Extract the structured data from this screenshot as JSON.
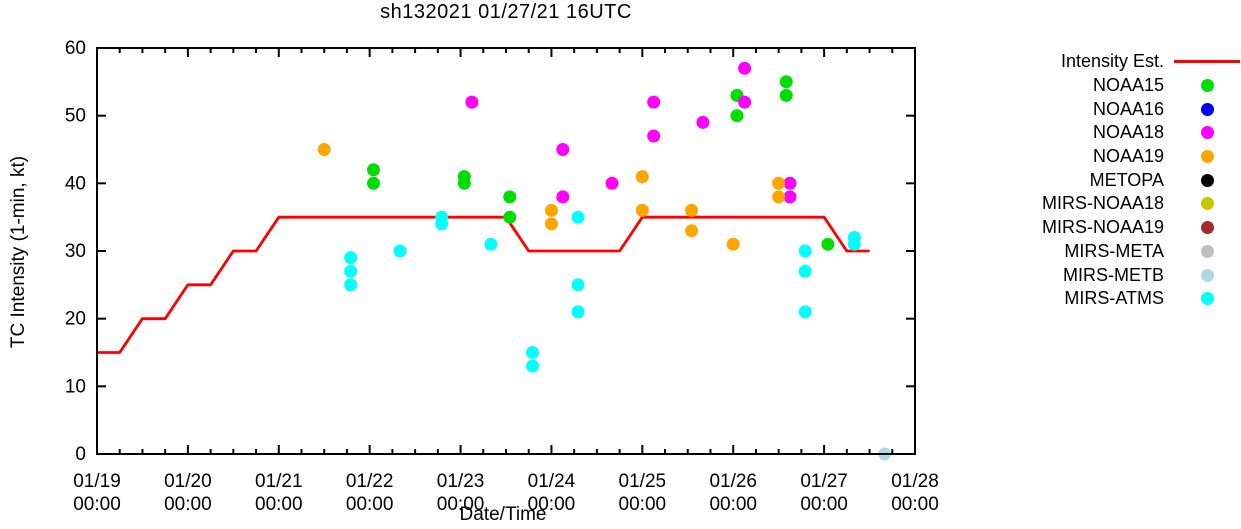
{
  "title": "sh132021 01/27/21 16UTC",
  "axes": {
    "ylabel": "TC Intensity (1-min, kt)",
    "xlabel": "Date/Time"
  },
  "chart_data": {
    "type": "line+scatter",
    "title": "sh132021 01/27/21 16UTC",
    "xlabel": "Date/Time",
    "ylabel": "TC Intensity (1-min, kt)",
    "x_unit": "hours since 01/19 00:00",
    "xlim": [
      0,
      216
    ],
    "ylim": [
      0,
      60
    ],
    "x_minor_tick_hours": 6,
    "x_ticks": [
      {
        "hour": 0,
        "date": "01/19",
        "time": "00:00"
      },
      {
        "hour": 24,
        "date": "01/20",
        "time": "00:00"
      },
      {
        "hour": 48,
        "date": "01/21",
        "time": "00:00"
      },
      {
        "hour": 72,
        "date": "01/22",
        "time": "00:00"
      },
      {
        "hour": 96,
        "date": "01/23",
        "time": "00:00"
      },
      {
        "hour": 120,
        "date": "01/24",
        "time": "00:00"
      },
      {
        "hour": 144,
        "date": "01/25",
        "time": "00:00"
      },
      {
        "hour": 168,
        "date": "01/26",
        "time": "00:00"
      },
      {
        "hour": 192,
        "date": "01/27",
        "time": "00:00"
      },
      {
        "hour": 216,
        "date": "01/28",
        "time": "00:00"
      }
    ],
    "y_ticks": [
      0,
      10,
      20,
      30,
      40,
      50,
      60
    ],
    "series": [
      {
        "name": "Intensity Est.",
        "marker": "line",
        "color": "#ff0000",
        "points": [
          [
            0,
            15
          ],
          [
            6,
            15
          ],
          [
            12,
            20
          ],
          [
            18,
            20
          ],
          [
            24,
            25
          ],
          [
            30,
            25
          ],
          [
            36,
            30
          ],
          [
            42,
            30
          ],
          [
            48,
            35
          ],
          [
            108,
            35
          ],
          [
            114,
            30
          ],
          [
            138,
            30
          ],
          [
            144,
            35
          ],
          [
            192,
            35
          ],
          [
            198,
            30
          ],
          [
            204,
            30
          ]
        ]
      },
      {
        "name": "NOAA15",
        "marker": "dot",
        "color": "#00dd00",
        "points": [
          [
            73,
            42
          ],
          [
            73,
            40
          ],
          [
            97,
            41
          ],
          [
            97,
            40
          ],
          [
            109,
            38
          ],
          [
            109,
            35
          ],
          [
            169,
            53
          ],
          [
            169,
            50
          ],
          [
            182,
            55
          ],
          [
            182,
            53
          ],
          [
            193,
            31
          ]
        ]
      },
      {
        "name": "NOAA16",
        "marker": "dot",
        "color": "#0000ff",
        "points": []
      },
      {
        "name": "NOAA18",
        "marker": "dot",
        "color": "#ff00ff",
        "points": [
          [
            99,
            52
          ],
          [
            123,
            45
          ],
          [
            123,
            38
          ],
          [
            136,
            40
          ],
          [
            147,
            52
          ],
          [
            147,
            47
          ],
          [
            160,
            49
          ],
          [
            171,
            57
          ],
          [
            171,
            52
          ],
          [
            183,
            40
          ],
          [
            183,
            38
          ]
        ]
      },
      {
        "name": "NOAA19",
        "marker": "dot",
        "color": "#ffa500",
        "points": [
          [
            60,
            45
          ],
          [
            120,
            36
          ],
          [
            120,
            34
          ],
          [
            144,
            41
          ],
          [
            144,
            36
          ],
          [
            157,
            36
          ],
          [
            157,
            33
          ],
          [
            168,
            31
          ],
          [
            180,
            40
          ],
          [
            180,
            38
          ]
        ]
      },
      {
        "name": "METOPA",
        "marker": "dot",
        "color": "#000000",
        "points": []
      },
      {
        "name": "MIRS-NOAA18",
        "marker": "dot",
        "color": "#c8c800",
        "points": []
      },
      {
        "name": "MIRS-NOAA19",
        "marker": "dot",
        "color": "#a52a2a",
        "points": []
      },
      {
        "name": "MIRS-META",
        "marker": "dot",
        "color": "#c0c0c0",
        "points": []
      },
      {
        "name": "MIRS-METB",
        "marker": "dot",
        "color": "#add8e6",
        "points": [
          [
            208,
            0
          ]
        ]
      },
      {
        "name": "MIRS-ATMS",
        "marker": "dot",
        "color": "#00ffff",
        "points": [
          [
            67,
            29
          ],
          [
            67,
            27
          ],
          [
            67,
            25
          ],
          [
            80,
            30
          ],
          [
            91,
            35
          ],
          [
            91,
            34
          ],
          [
            104,
            31
          ],
          [
            115,
            15
          ],
          [
            115,
            13
          ],
          [
            127,
            35
          ],
          [
            127,
            25
          ],
          [
            127,
            21
          ],
          [
            187,
            30
          ],
          [
            187,
            27
          ],
          [
            187,
            21
          ],
          [
            200,
            32
          ],
          [
            200,
            31
          ]
        ]
      }
    ]
  }
}
